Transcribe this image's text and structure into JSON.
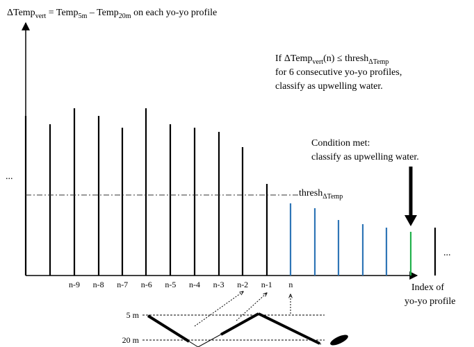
{
  "title": {
    "parts": [
      "ΔTemp",
      "vert",
      " = Temp",
      "5m",
      " – Temp",
      "20m",
      " on each yo-yo profile"
    ]
  },
  "rule": {
    "line1": [
      "If ΔTemp",
      "vert",
      "(n) ≤ thresh",
      "ΔTemp"
    ],
    "line2": "for 6 consecutive yo-yo profiles,",
    "line3": "classify as upwelling water."
  },
  "condition": {
    "line1": "Condition met:",
    "line2": "classify as upwelling water."
  },
  "threshold": [
    "thresh",
    "ΔTemp"
  ],
  "left_ellipsis": "...",
  "right_ellipsis": "...",
  "profile_labels": [
    "n-9",
    "n-8",
    "n-7",
    "n-6",
    "n-5",
    "n-4",
    "n-3",
    "n-2",
    "n-1",
    "n"
  ],
  "x_axis_label": [
    "Index of",
    "yo-yo profile"
  ],
  "depths": [
    "5 m",
    "20 m"
  ]
}
